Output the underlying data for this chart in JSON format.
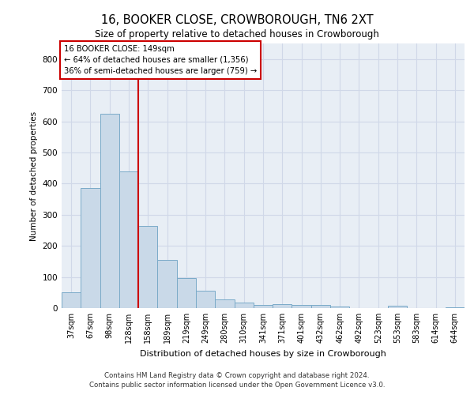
{
  "title": "16, BOOKER CLOSE, CROWBOROUGH, TN6 2XT",
  "subtitle": "Size of property relative to detached houses in Crowborough",
  "xlabel": "Distribution of detached houses by size in Crowborough",
  "ylabel": "Number of detached properties",
  "categories": [
    "37sqm",
    "67sqm",
    "98sqm",
    "128sqm",
    "158sqm",
    "189sqm",
    "219sqm",
    "249sqm",
    "280sqm",
    "310sqm",
    "341sqm",
    "371sqm",
    "401sqm",
    "432sqm",
    "462sqm",
    "492sqm",
    "523sqm",
    "553sqm",
    "583sqm",
    "614sqm",
    "644sqm"
  ],
  "values": [
    50,
    385,
    625,
    440,
    265,
    155,
    97,
    55,
    28,
    17,
    10,
    12,
    11,
    10,
    4,
    0,
    0,
    8,
    0,
    0,
    2
  ],
  "bar_color": "#c9d9e8",
  "bar_edge_color": "#7aaac8",
  "property_label": "16 BOOKER CLOSE: 149sqm",
  "annotation_line1": "← 64% of detached houses are smaller (1,356)",
  "annotation_line2": "36% of semi-detached houses are larger (759) →",
  "vline_color": "#cc0000",
  "vline_x_index": 3.5,
  "annotation_box_color": "#cc0000",
  "ylim": [
    0,
    850
  ],
  "yticks": [
    0,
    100,
    200,
    300,
    400,
    500,
    600,
    700,
    800
  ],
  "grid_color": "#d0d8e8",
  "background_color": "#e8eef5",
  "footer_line1": "Contains HM Land Registry data © Crown copyright and database right 2024.",
  "footer_line2": "Contains public sector information licensed under the Open Government Licence v3.0."
}
